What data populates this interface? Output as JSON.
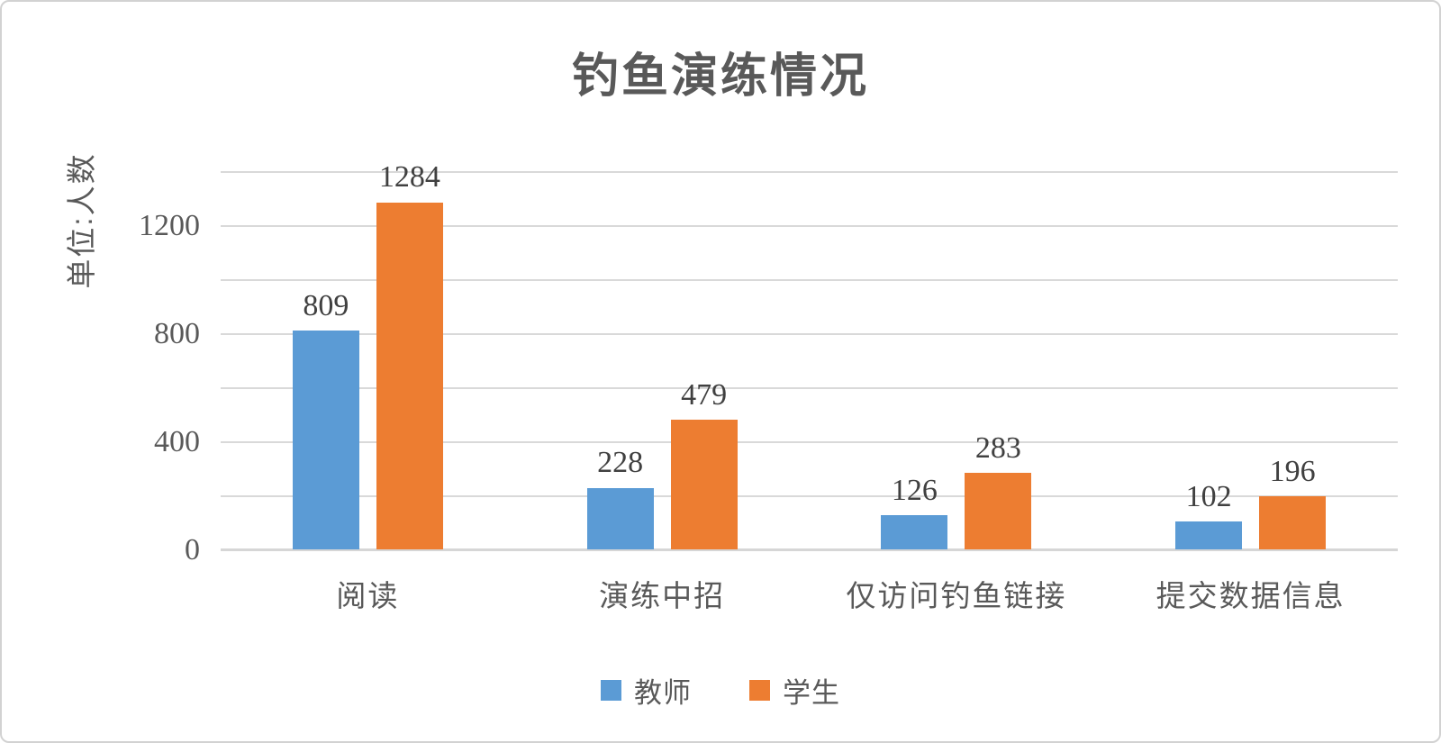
{
  "title": "钓鱼演练情况",
  "y_axis_title": "单位:人数",
  "colors": {
    "teacher_blue": "#5B9BD5",
    "student_orange": "#ED7D31",
    "gridline": "#d9d9d9",
    "title_text": "#595959",
    "value_label_text": "#404040",
    "card_border": "#d2d2d2"
  },
  "chart_data": {
    "type": "bar",
    "title": "钓鱼演练情况",
    "ylabel": "单位:人数",
    "xlabel": "",
    "categories": [
      "阅读",
      "演练中招",
      "仅访问钓鱼链接",
      "提交数据信息"
    ],
    "series": [
      {
        "name": "教师",
        "color": "#5B9BD5",
        "values": [
          809,
          228,
          126,
          102
        ]
      },
      {
        "name": "学生",
        "color": "#ED7D31",
        "values": [
          1284,
          479,
          283,
          196
        ]
      }
    ],
    "ylim": [
      0,
      1400
    ],
    "grid": true,
    "grid_interval": 200,
    "ytick_values": [
      0,
      400,
      800,
      1200
    ],
    "ytick_labels": [
      "0",
      "400",
      "800",
      "1200"
    ],
    "legend_position": "bottom",
    "data_labels": true
  }
}
